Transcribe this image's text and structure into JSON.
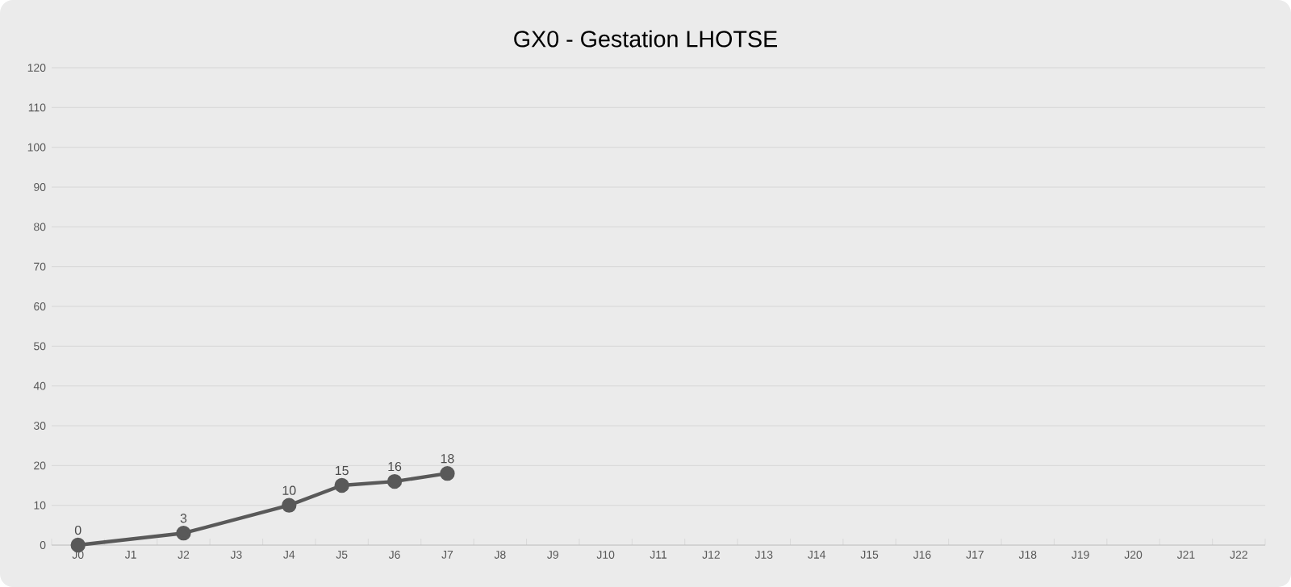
{
  "chart_data": {
    "type": "line",
    "title": "GX0 - Gestation LHOTSE",
    "categories": [
      "J0",
      "J1",
      "J2",
      "J3",
      "J4",
      "J5",
      "J6",
      "J7",
      "J8",
      "J9",
      "J10",
      "J11",
      "J12",
      "J13",
      "J14",
      "J15",
      "J16",
      "J17",
      "J18",
      "J19",
      "J20",
      "J21",
      "J22"
    ],
    "values": [
      0,
      null,
      3,
      null,
      10,
      15,
      16,
      18,
      null,
      null,
      null,
      null,
      null,
      null,
      null,
      null,
      null,
      null,
      null,
      null,
      null,
      null,
      null
    ],
    "color": "#595959",
    "marker": "circle",
    "data_labels": true,
    "grid": "y",
    "ylim": [
      0,
      120
    ],
    "yticks": [
      0,
      10,
      20,
      30,
      40,
      50,
      60,
      70,
      80,
      90,
      100,
      110,
      120
    ]
  }
}
